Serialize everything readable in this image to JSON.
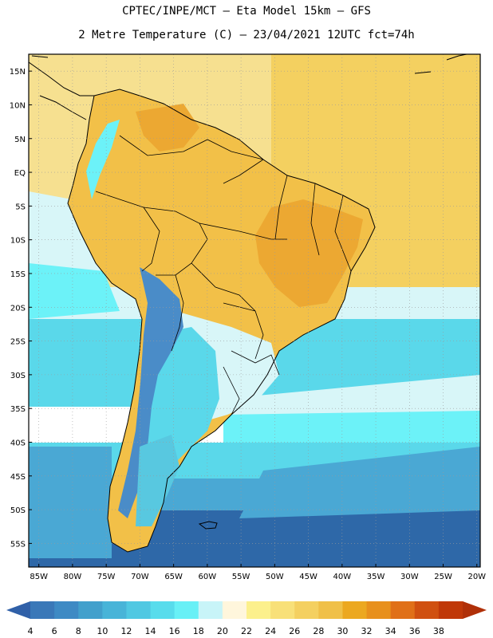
{
  "title_line1": "CPTEC/INPE/MCT –  Eta Model 15km – GFS",
  "title_line2": "2 Metre Temperature (C) – 23/04/2021 12UTC fct=74h",
  "lat_labels": [
    "15N",
    "10N",
    "5N",
    "EQ",
    "5S",
    "10S",
    "15S",
    "20S",
    "25S",
    "30S",
    "35S",
    "40S",
    "45S",
    "50S",
    "55S"
  ],
  "lat_values": [
    15,
    10,
    5,
    0,
    -5,
    -10,
    -15,
    -20,
    -25,
    -30,
    -35,
    -40,
    -45,
    -50,
    -55
  ],
  "lon_labels": [
    "85W",
    "80W",
    "75W",
    "70W",
    "65W",
    "60W",
    "55W",
    "50W",
    "45W",
    "40W",
    "35W",
    "30W",
    "25W",
    "20W"
  ],
  "lon_values": [
    -85,
    -80,
    -75,
    -70,
    -65,
    -60,
    -55,
    -50,
    -45,
    -40,
    -35,
    -30,
    -25,
    -20
  ],
  "colorbar": {
    "ticks": [
      "4",
      "6",
      "8",
      "10",
      "12",
      "14",
      "16",
      "18",
      "20",
      "22",
      "24",
      "26",
      "28",
      "30",
      "32",
      "34",
      "36",
      "38"
    ],
    "colors": [
      "#3a78b8",
      "#3e8ac4",
      "#42a0cc",
      "#48b4d8",
      "#50c8e2",
      "#58dcec",
      "#68f0f6",
      "#c8f4f8",
      "#fff6dc",
      "#fcf08c",
      "#f8e078",
      "#f4d060",
      "#f0c048",
      "#eca820",
      "#e8901c",
      "#e07018",
      "#d05010",
      "#c03808"
    ],
    "left_arrow_color": "#3060a8",
    "right_arrow_color": "#b03008"
  },
  "map_colors": {
    "ocean_cold": "#2e68a8",
    "ocean_cool": "#4aa8d4",
    "ocean_mid": "#5ad8ea",
    "ocean_light": "#6cf2f8",
    "ocean_pale": "#d8f6f8",
    "ocean_warm": "#f6e090",
    "ocean_warm2": "#f4d060",
    "land_warm": "#f2c048",
    "land_hot": "#eca832",
    "andes_cold": "#4a8cc8",
    "patagonia": "#58c8e0",
    "grid": "#9a9a9a",
    "border": "#000000"
  }
}
